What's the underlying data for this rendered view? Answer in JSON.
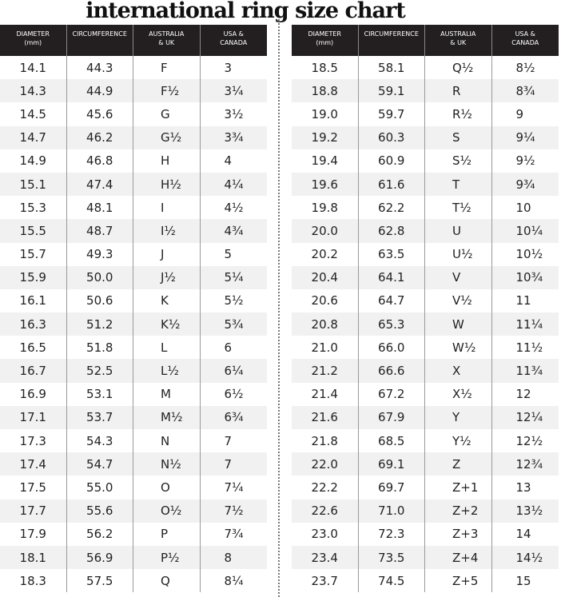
{
  "title": "international ring size chart",
  "headers": [
    "DIAMETER\n(mm)",
    "CIRCUMFERENCE",
    "AUSTRALIA\n& UK",
    "USA &\nCANADA"
  ],
  "left_rows": [
    [
      "14.1",
      "44.3",
      "F",
      "3"
    ],
    [
      "14.3",
      "44.9",
      "F½",
      "3¼"
    ],
    [
      "14.5",
      "45.6",
      "G",
      "3½"
    ],
    [
      "14.7",
      "46.2",
      "G½",
      "3¾"
    ],
    [
      "14.9",
      "46.8",
      "H",
      "4"
    ],
    [
      "15.1",
      "47.4",
      "H½",
      "4¼"
    ],
    [
      "15.3",
      "48.1",
      "I",
      "4½"
    ],
    [
      "15.5",
      "48.7",
      "I½",
      "4¾"
    ],
    [
      "15.7",
      "49.3",
      "J",
      "5"
    ],
    [
      "15.9",
      "50.0",
      "J½",
      "5¼"
    ],
    [
      "16.1",
      "50.6",
      "K",
      "5½"
    ],
    [
      "16.3",
      "51.2",
      "K½",
      "5¾"
    ],
    [
      "16.5",
      "51.8",
      "L",
      "6"
    ],
    [
      "16.7",
      "52.5",
      "L½",
      "6¼"
    ],
    [
      "16.9",
      "53.1",
      "M",
      "6½"
    ],
    [
      "17.1",
      "53.7",
      "M½",
      "6¾"
    ],
    [
      "17.3",
      "54.3",
      "N",
      "7"
    ],
    [
      "17.4",
      "54.7",
      "N½",
      "7"
    ],
    [
      "17.5",
      "55.0",
      "O",
      "7¼"
    ],
    [
      "17.7",
      "55.6",
      "O½",
      "7½"
    ],
    [
      "17.9",
      "56.2",
      "P",
      "7¾"
    ],
    [
      "18.1",
      "56.9",
      "P½",
      "8"
    ],
    [
      "18.3",
      "57.5",
      "Q",
      "8¼"
    ]
  ],
  "right_rows": [
    [
      "18.5",
      "58.1",
      "Q½",
      "8½"
    ],
    [
      "18.8",
      "59.1",
      "R",
      "8¾"
    ],
    [
      "19.0",
      "59.7",
      "R½",
      "9"
    ],
    [
      "19.2",
      "60.3",
      "S",
      "9¼"
    ],
    [
      "19.4",
      "60.9",
      "S½",
      "9½"
    ],
    [
      "19.6",
      "61.6",
      "T",
      "9¾"
    ],
    [
      "19.8",
      "62.2",
      "T½",
      "10"
    ],
    [
      "20.0",
      "62.8",
      "U",
      "10¼"
    ],
    [
      "20.2",
      "63.5",
      "U½",
      "10½"
    ],
    [
      "20.4",
      "64.1",
      "V",
      "10¾"
    ],
    [
      "20.6",
      "64.7",
      "V½",
      "11"
    ],
    [
      "20.8",
      "65.3",
      "W",
      "11¼"
    ],
    [
      "21.0",
      "66.0",
      "W½",
      "11½"
    ],
    [
      "21.2",
      "66.6",
      "X",
      "11¾"
    ],
    [
      "21.4",
      "67.2",
      "X½",
      "12"
    ],
    [
      "21.6",
      "67.9",
      "Y",
      "12¼"
    ],
    [
      "21.8",
      "68.5",
      "Y½",
      "12½"
    ],
    [
      "22.0",
      "69.1",
      "Z",
      "12¾"
    ],
    [
      "22.2",
      "69.7",
      "Z+1",
      "13"
    ],
    [
      "22.6",
      "71.0",
      "Z+2",
      "13½"
    ],
    [
      "23.0",
      "72.3",
      "Z+3",
      "14"
    ],
    [
      "23.4",
      "73.5",
      "Z+4",
      "14½"
    ],
    [
      "23.7",
      "74.5",
      "Z+5",
      "15"
    ]
  ]
}
